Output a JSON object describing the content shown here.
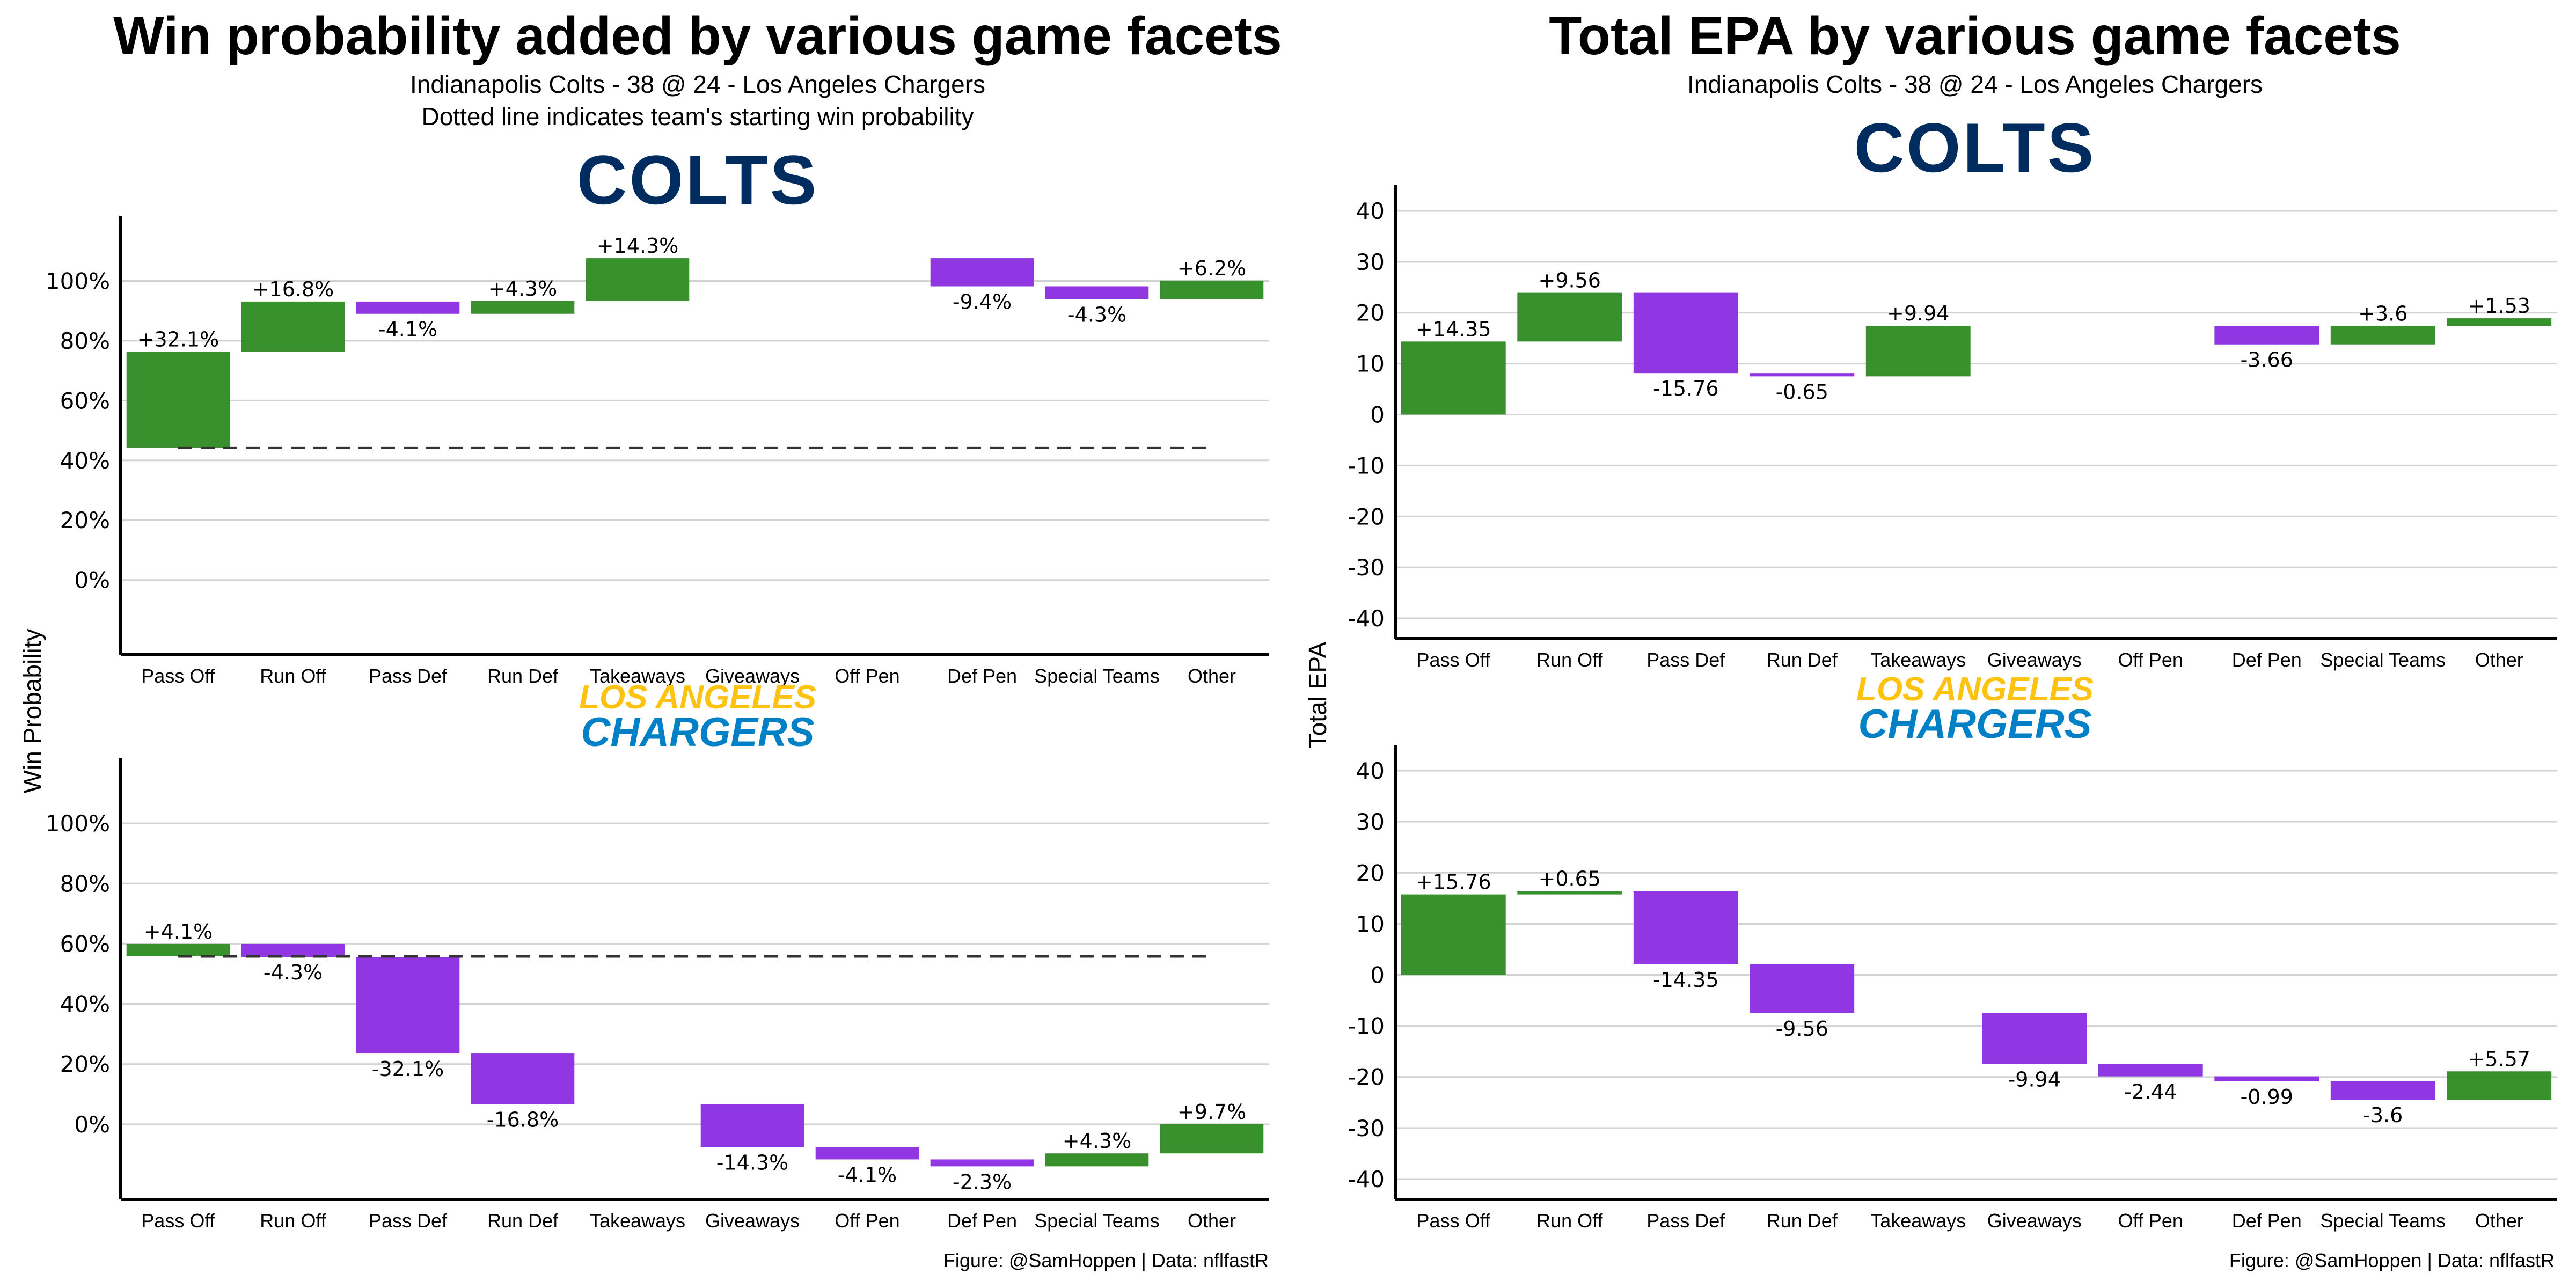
{
  "left": {
    "title": "Win probability added by various game facets",
    "subtitle": "Indianapolis Colts - 38 @ 24 - Los Angeles Chargers",
    "subtitle2": "Dotted line indicates team's starting win probability",
    "ylabel": "Win Probability",
    "caption": "Figure: @SamHoppen | Data: nflfastR"
  },
  "right": {
    "title": "Total EPA by various game facets",
    "subtitle": "Indianapolis Colts - 38 @ 24 - Los Angeles Chargers",
    "ylabel": "Total EPA",
    "caption": "Figure: @SamHoppen | Data: nflfastR"
  },
  "logos": {
    "colts": {
      "text": "COLTS",
      "color": "#002C5F"
    },
    "chargers": {
      "line1": "LOS ANGELES",
      "line2": "CHARGERS",
      "color1": "#FFC20E",
      "color2": "#0080C6"
    }
  },
  "colors": {
    "positive": "#2E8B22",
    "negative": "#8A2BE2",
    "grid": "#d3d3d3"
  },
  "chart_data": [
    {
      "type": "bar",
      "subtype": "waterfall",
      "panel": "Win probability - Colts",
      "logo": "colts",
      "categories": [
        "Pass Off",
        "Run Off",
        "Pass Def",
        "Run Def",
        "Takeaways",
        "Giveaways",
        "Off Pen",
        "Def Pen",
        "Special Teams",
        "Other"
      ],
      "start": 44.2,
      "values": [
        32.1,
        16.8,
        -4.1,
        4.3,
        14.3,
        null,
        null,
        -9.4,
        -4.3,
        6.2
      ],
      "labels": [
        "+32.1%",
        "+16.8%",
        "-4.1%",
        "+4.3%",
        "+14.3%",
        "",
        "",
        "-9.4%",
        "-4.3%",
        "+6.2%"
      ],
      "ylim": [
        -25,
        120
      ],
      "yticks": [
        0,
        20,
        40,
        60,
        80,
        100
      ],
      "yticklabels": [
        "0%",
        "20%",
        "40%",
        "60%",
        "80%",
        "100%"
      ],
      "baseline": 44.2
    },
    {
      "type": "bar",
      "subtype": "waterfall",
      "panel": "Win probability - Chargers",
      "logo": "chargers",
      "categories": [
        "Pass Off",
        "Run Off",
        "Pass Def",
        "Run Def",
        "Takeaways",
        "Giveaways",
        "Off Pen",
        "Def Pen",
        "Special Teams",
        "Other"
      ],
      "start": 55.8,
      "values": [
        4.1,
        -4.3,
        -32.1,
        -16.8,
        null,
        -14.3,
        -4.1,
        -2.3,
        4.3,
        9.7
      ],
      "labels": [
        "+4.1%",
        "-4.3%",
        "-32.1%",
        "-16.8%",
        "",
        "-14.3%",
        "-4.1%",
        "-2.3%",
        "+4.3%",
        "+9.7%"
      ],
      "ylim": [
        -25,
        120
      ],
      "yticks": [
        0,
        20,
        40,
        60,
        80,
        100
      ],
      "yticklabels": [
        "0%",
        "20%",
        "40%",
        "60%",
        "80%",
        "100%"
      ],
      "baseline": 55.8
    },
    {
      "type": "bar",
      "subtype": "waterfall",
      "panel": "Total EPA - Colts",
      "logo": "colts",
      "categories": [
        "Pass Off",
        "Run Off",
        "Pass Def",
        "Run Def",
        "Takeaways",
        "Giveaways",
        "Off Pen",
        "Def Pen",
        "Special Teams",
        "Other"
      ],
      "start": 0,
      "values": [
        14.35,
        9.56,
        -15.76,
        -0.65,
        9.94,
        null,
        null,
        -3.66,
        3.6,
        1.53
      ],
      "labels": [
        "+14.35",
        "+9.56",
        "-15.76",
        "-0.65",
        "+9.94",
        "",
        "",
        "-3.66",
        "+3.6",
        "+1.53"
      ],
      "ylim": [
        -44,
        44
      ],
      "yticks": [
        -40,
        -30,
        -20,
        -10,
        0,
        10,
        20,
        30,
        40
      ],
      "yticklabels": [
        "-40",
        "-30",
        "-20",
        "-10",
        "0",
        "10",
        "20",
        "30",
        "40"
      ],
      "baseline": null
    },
    {
      "type": "bar",
      "subtype": "waterfall",
      "panel": "Total EPA - Chargers",
      "logo": "chargers",
      "categories": [
        "Pass Off",
        "Run Off",
        "Pass Def",
        "Run Def",
        "Takeaways",
        "Giveaways",
        "Off Pen",
        "Def Pen",
        "Special Teams",
        "Other"
      ],
      "start": 0,
      "values": [
        15.76,
        0.65,
        -14.35,
        -9.56,
        null,
        -9.94,
        -2.44,
        -0.99,
        -3.6,
        5.57
      ],
      "labels": [
        "+15.76",
        "+0.65",
        "-14.35",
        "-9.56",
        "",
        "-9.94",
        "-2.44",
        "-0.99",
        "-3.6",
        "+5.57"
      ],
      "ylim": [
        -44,
        44
      ],
      "yticks": [
        -40,
        -30,
        -20,
        -10,
        0,
        10,
        20,
        30,
        40
      ],
      "yticklabels": [
        "-40",
        "-30",
        "-20",
        "-10",
        "0",
        "10",
        "20",
        "30",
        "40"
      ],
      "baseline": null
    }
  ]
}
